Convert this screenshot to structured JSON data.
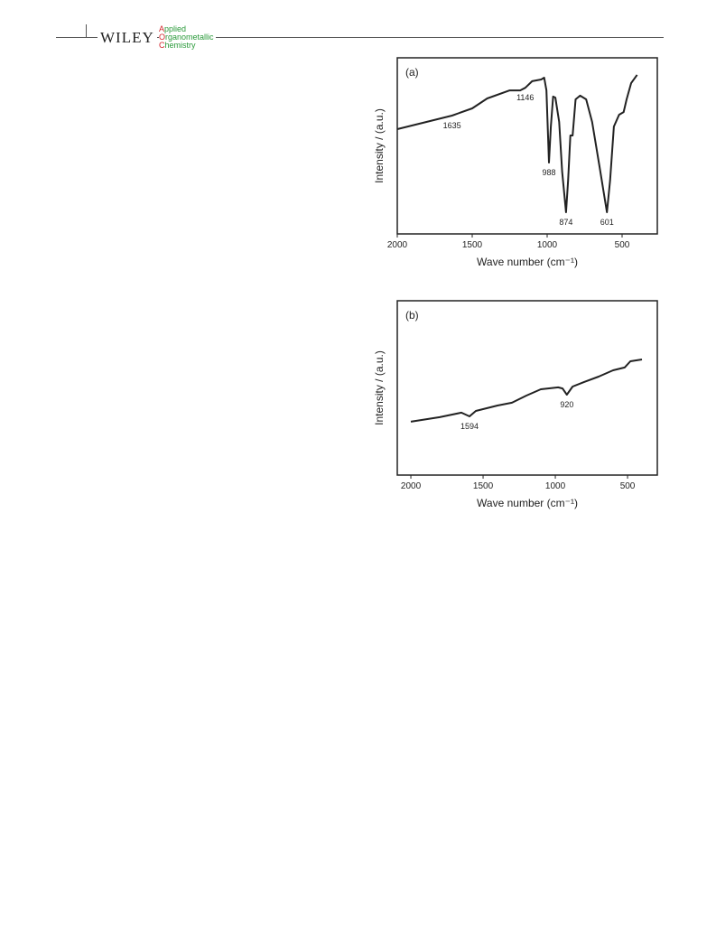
{
  "header": {
    "publisher": "WILEY",
    "journal": [
      "Applied",
      "Organometallic",
      "Chemistry"
    ]
  },
  "chart_data": [
    {
      "type": "line",
      "panel": "(a)",
      "x_label": "Wave number (cm⁻¹)",
      "y_label": "Intensity / (a.u.)",
      "xlim": [
        2000,
        265
      ],
      "xticks": [
        2000,
        1500,
        1000,
        500
      ],
      "ylim": [
        0,
        100
      ],
      "color": "#222222",
      "x": [
        2000,
        1635,
        1500,
        1400,
        1250,
        1180,
        1146,
        1100,
        1040,
        1020,
        1005,
        988,
        975,
        960,
        945,
        920,
        900,
        874,
        860,
        845,
        830,
        810,
        780,
        740,
        700,
        650,
        601,
        580,
        555,
        520,
        490,
        470,
        440,
        400
      ],
      "values": [
        59.5,
        67.2,
        71.3,
        76.9,
        81.5,
        81.5,
        83,
        86.7,
        87.7,
        88.7,
        81.5,
        40.5,
        61,
        78,
        77.4,
        63.6,
        35.4,
        12.3,
        30.3,
        55.9,
        55.9,
        76.4,
        78.5,
        76.4,
        63.6,
        37.9,
        12.3,
        30.3,
        61,
        67.7,
        69.2,
        76.4,
        85.6,
        90.3
      ],
      "annotations": [
        1635,
        1146,
        988,
        874,
        601
      ]
    },
    {
      "type": "line",
      "panel": "(b)",
      "x_label": "Wave number (cm⁻¹)",
      "y_label": "Intensity / (a.u.)",
      "xlim": [
        2094,
        294
      ],
      "xticks": [
        2000,
        1500,
        1000,
        500
      ],
      "ylim": [
        0,
        100
      ],
      "color": "#222222",
      "x": [
        2000,
        1800,
        1650,
        1594,
        1550,
        1400,
        1300,
        1200,
        1100,
        1050,
        980,
        950,
        920,
        880,
        800,
        700,
        600,
        520,
        480,
        400
      ],
      "values": [
        30.6,
        33.2,
        35.8,
        33.7,
        36.8,
        39.9,
        41.5,
        45.6,
        49.2,
        49.7,
        50.3,
        49.7,
        46.1,
        50.8,
        53.4,
        56.5,
        60.1,
        61.7,
        65.3,
        66.3
      ],
      "annotations": [
        1594,
        920
      ]
    }
  ]
}
